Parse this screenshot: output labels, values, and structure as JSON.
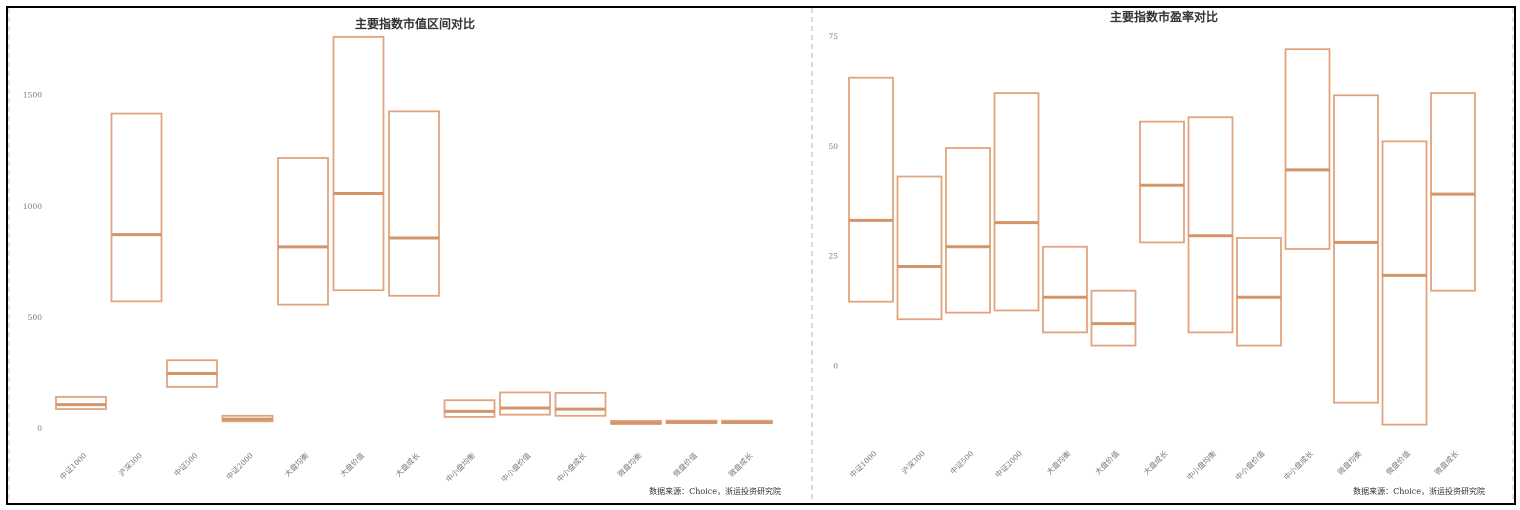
{
  "colors": {
    "box": "#e2a47e",
    "median": "#d4956a",
    "axis_text": "#777777",
    "title": "#333333",
    "border": "#000000",
    "divider": "#b5b5b5"
  },
  "chart_data": [
    {
      "type": "box-range",
      "title": "主要指数市值区间对比",
      "source": "数据来源：Choice，浙运投资研究院",
      "categories": [
        "中证1000",
        "沪深300",
        "中证500",
        "中证2000",
        "大盘均衡",
        "大盘价值",
        "大盘成长",
        "中小盘均衡",
        "中小盘价值",
        "中小盘成长",
        "微盘均衡",
        "微盘价值",
        "微盘成长"
      ],
      "low": [
        85,
        570,
        185,
        30,
        555,
        620,
        595,
        50,
        60,
        55,
        18,
        22,
        22
      ],
      "median": [
        105,
        870,
        245,
        40,
        815,
        1055,
        855,
        75,
        90,
        85,
        23,
        26,
        25
      ],
      "high": [
        140,
        1415,
        305,
        55,
        1215,
        1760,
        1425,
        125,
        160,
        158,
        32,
        33,
        33
      ],
      "yticks": [
        0,
        500,
        1000,
        1500
      ],
      "ylim": [
        0,
        1800
      ]
    },
    {
      "type": "box-range",
      "title": "主要指数市盈率对比",
      "source": "数据来源：Choice，浙运投资研究院",
      "categories": [
        "中证1000",
        "沪深300",
        "中证500",
        "中证2000",
        "大盘均衡",
        "大盘价值",
        "大盘成长",
        "中小盘均衡",
        "中小盘价值",
        "中小盘成长",
        "微盘均衡",
        "微盘价值",
        "微盘成长"
      ],
      "low": [
        14.5,
        10.5,
        12,
        12.5,
        7.5,
        4.5,
        28,
        7.5,
        4.5,
        26.5,
        -8.5,
        -13.5,
        17
      ],
      "median": [
        33,
        22.5,
        27,
        32.5,
        15.5,
        9.5,
        41,
        29.5,
        15.5,
        44.5,
        28,
        20.5,
        39
      ],
      "high": [
        65.5,
        43,
        49.5,
        62,
        27,
        17,
        55.5,
        56.5,
        29,
        72,
        61.5,
        51,
        62
      ],
      "yticks": [
        0,
        25,
        50,
        75
      ],
      "ylim": [
        -17,
        75
      ]
    }
  ]
}
